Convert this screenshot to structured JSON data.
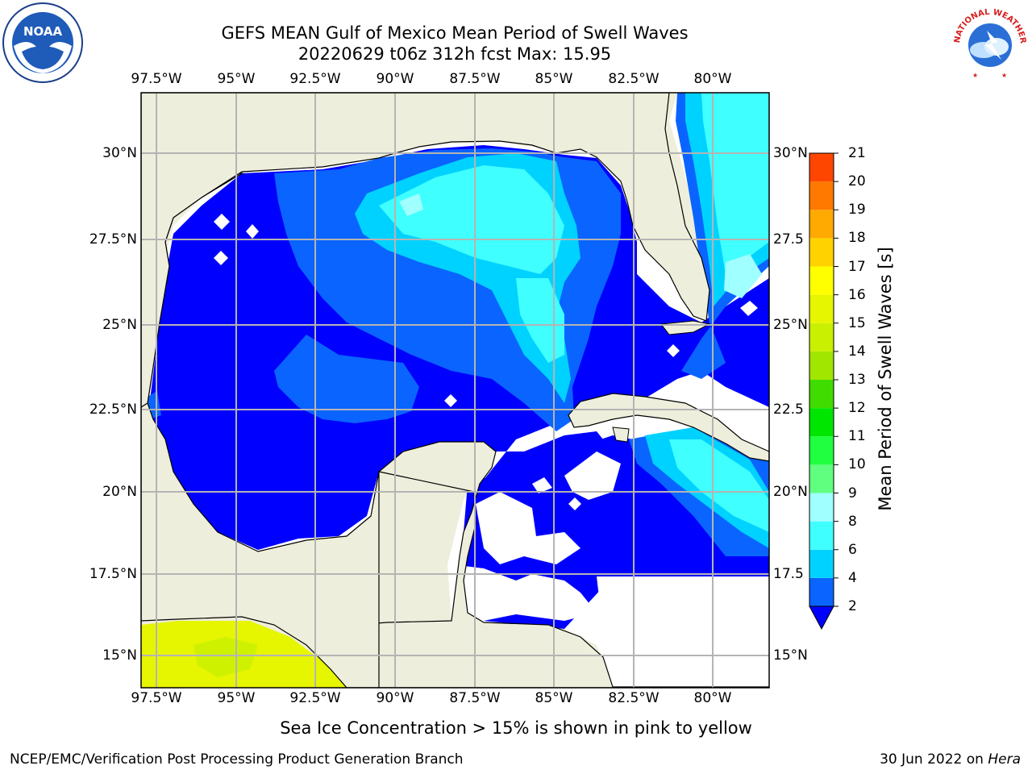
{
  "header": {
    "title_line1": "GEFS MEAN Gulf of Mexico Mean Period of Swell Waves",
    "title_line2": "20220629 t06z 312h fcst   Max: 15.95"
  },
  "logos": {
    "left": "noaa-logo",
    "right": "nws-logo",
    "nws_ring_text": "NATIONAL WEATHER SERVICE"
  },
  "map": {
    "lon_ticks_top": [
      "97.5°W",
      "95°W",
      "92.5°W",
      "90°W",
      "87.5°W",
      "85°W",
      "82.5°W",
      "80°W"
    ],
    "lon_ticks_bottom": [
      "97.5°W",
      "95°W",
      "92.5°W",
      "90°W",
      "87.5°W",
      "85°W",
      "82.5°W",
      "80°W"
    ],
    "lat_ticks_left": [
      "30°N",
      "27.5°N",
      "25°N",
      "22.5°N",
      "20°N",
      "17.5°N",
      "15°N"
    ],
    "lat_ticks_right": [
      "30°N",
      "27.5",
      "25°N",
      "22.5",
      "20°N",
      "17.5",
      "15°N"
    ],
    "land_color": "#eeeedc",
    "grid_color": "#b4b4b4"
  },
  "chart_data": {
    "type": "heatmap",
    "title": "GEFS MEAN Gulf of Mexico Mean Period of Swell Waves",
    "subtitle": "20220629 t06z 312h fcst   Max: 15.95",
    "colorbar": {
      "label": "Mean Period of Swell Waves [s]",
      "ticks": [
        "2",
        "4",
        "6",
        "8",
        "9",
        "10",
        "11",
        "12",
        "13",
        "14",
        "15",
        "16",
        "17",
        "18",
        "19",
        "20",
        "21"
      ],
      "levels": [
        2,
        4,
        6,
        8,
        9,
        10,
        11,
        12,
        13,
        14,
        15,
        16,
        17,
        18,
        19,
        20,
        21
      ],
      "colors": [
        "#0a64ff",
        "#00d2ff",
        "#40ffff",
        "#a0ffff",
        "#60ff80",
        "#20ff40",
        "#00e600",
        "#40dc00",
        "#a0e600",
        "#c8f000",
        "#e6f500",
        "#ffff00",
        "#ffd200",
        "#ffaa00",
        "#ff7800",
        "#ff4600",
        "#ff0000"
      ],
      "extend_below_color": "#0000ff"
    },
    "fill_colors": {
      "lt2": "#0000ff",
      "2-4": "#0a64ff",
      "4-6": "#00d2ff",
      "6-8": "#40ffff",
      "8-9": "#a0ffff",
      "ice": "#e6f500"
    },
    "xlim": [
      "98.0°W",
      "78.0°W"
    ],
    "ylim": [
      "14°N",
      "31.8°N"
    ]
  },
  "footer": {
    "note": "Sea Ice Concentration > 15% is shown in pink to yellow",
    "credit": "NCEP/EMC/Verification Post Processing Product Generation Branch",
    "date_prefix": "30 Jun 2022 on",
    "date_host": "Hera"
  }
}
